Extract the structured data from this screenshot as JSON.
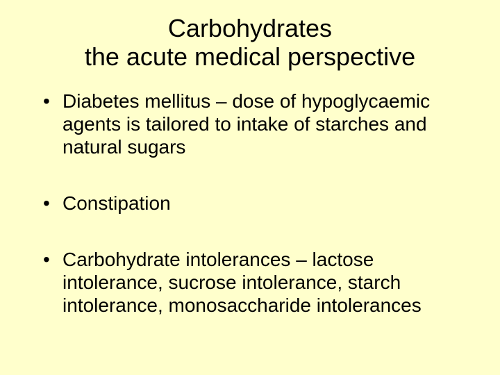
{
  "background_color": "#ffffcc",
  "text_color": "#000000",
  "font_family": "Arial",
  "title": {
    "line1": "Carbohydrates",
    "line2": "the acute medical perspective",
    "fontsize": 36,
    "align": "center"
  },
  "bullets": {
    "fontsize": 28,
    "marker": "•",
    "items": [
      "Diabetes mellitus – dose of hypoglycaemic agents is tailored to intake of starches and natural sugars",
      "Constipation",
      "Carbohydrate intolerances – lactose intolerance, sucrose intolerance, starch intolerance, monosaccharide intolerances"
    ]
  }
}
